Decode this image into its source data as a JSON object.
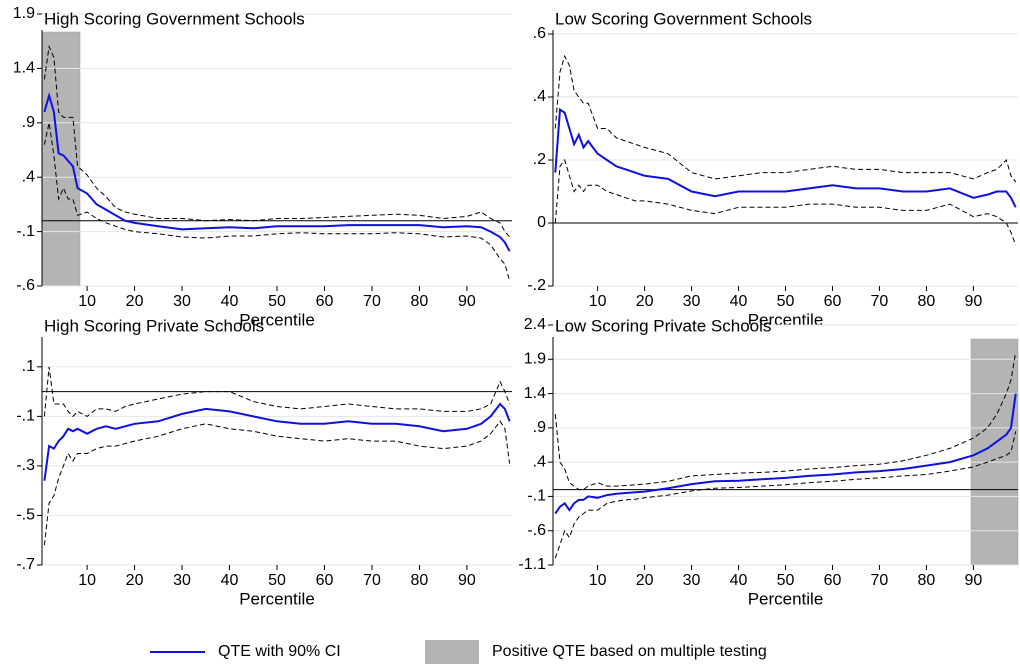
{
  "chart_data": [
    {
      "type": "line",
      "title": "High Scoring Government Schools",
      "x_label": "Percentile",
      "x": [
        1,
        2,
        3,
        4,
        5,
        6,
        7,
        8,
        10,
        12,
        14,
        16,
        18,
        20,
        25,
        30,
        35,
        40,
        45,
        50,
        55,
        60,
        65,
        70,
        75,
        80,
        85,
        90,
        93,
        95,
        97,
        98,
        99
      ],
      "qte": [
        1.0,
        1.15,
        1.0,
        0.62,
        0.6,
        0.55,
        0.5,
        0.3,
        0.25,
        0.15,
        0.1,
        0.05,
        0.0,
        -0.02,
        -0.05,
        -0.08,
        -0.07,
        -0.06,
        -0.07,
        -0.05,
        -0.05,
        -0.05,
        -0.04,
        -0.04,
        -0.04,
        -0.04,
        -0.06,
        -0.05,
        -0.06,
        -0.1,
        -0.15,
        -0.2,
        -0.28
      ],
      "ci_upper": [
        1.3,
        1.6,
        1.5,
        1.0,
        0.95,
        0.95,
        0.95,
        0.5,
        0.42,
        0.3,
        0.22,
        0.12,
        0.08,
        0.06,
        0.02,
        0.02,
        0.0,
        0.01,
        0.0,
        0.02,
        0.02,
        0.03,
        0.04,
        0.05,
        0.06,
        0.05,
        0.02,
        0.04,
        0.08,
        0.02,
        -0.02,
        -0.1,
        -0.15
      ],
      "ci_lower": [
        0.7,
        0.9,
        0.6,
        0.2,
        0.3,
        0.2,
        0.2,
        0.05,
        0.08,
        0.02,
        -0.02,
        -0.05,
        -0.08,
        -0.1,
        -0.12,
        -0.15,
        -0.16,
        -0.14,
        -0.14,
        -0.12,
        -0.11,
        -0.12,
        -0.12,
        -0.12,
        -0.11,
        -0.12,
        -0.15,
        -0.14,
        -0.16,
        -0.22,
        -0.35,
        -0.4,
        -0.55
      ],
      "shaded": [
        0.5,
        8.5
      ],
      "refline": 0,
      "xlim": [
        0.5,
        99.5
      ],
      "ylim": [
        -0.6,
        1.9
      ],
      "xticks": [
        10,
        20,
        30,
        40,
        50,
        60,
        70,
        80,
        90
      ],
      "yticks": [
        {
          "value": -0.6,
          "label": "-.6"
        },
        {
          "value": -0.1,
          "label": "-.1"
        },
        {
          "value": 0.4,
          "label": ".4"
        },
        {
          "value": 0.9,
          "label": ".9"
        },
        {
          "value": 1.4,
          "label": "1.4"
        },
        {
          "value": 1.9,
          "label": "1.9"
        }
      ],
      "grid": true
    },
    {
      "type": "line",
      "title": "Low Scoring Government Schools",
      "x_label": "Percentile",
      "x": [
        1,
        2,
        3,
        4,
        5,
        6,
        7,
        8,
        10,
        12,
        14,
        16,
        18,
        20,
        25,
        30,
        35,
        40,
        45,
        50,
        55,
        60,
        65,
        70,
        75,
        80,
        85,
        90,
        93,
        95,
        97,
        98,
        99
      ],
      "qte": [
        0.16,
        0.36,
        0.35,
        0.3,
        0.25,
        0.28,
        0.24,
        0.26,
        0.22,
        0.2,
        0.18,
        0.17,
        0.16,
        0.15,
        0.14,
        0.1,
        0.085,
        0.1,
        0.1,
        0.1,
        0.11,
        0.12,
        0.11,
        0.11,
        0.1,
        0.1,
        0.11,
        0.08,
        0.09,
        0.1,
        0.1,
        0.08,
        0.05
      ],
      "ci_upper": [
        0.3,
        0.48,
        0.53,
        0.5,
        0.42,
        0.4,
        0.38,
        0.38,
        0.3,
        0.3,
        0.27,
        0.26,
        0.25,
        0.24,
        0.22,
        0.16,
        0.14,
        0.15,
        0.16,
        0.16,
        0.17,
        0.18,
        0.17,
        0.17,
        0.16,
        0.16,
        0.16,
        0.14,
        0.16,
        0.17,
        0.2,
        0.15,
        0.13
      ],
      "ci_lower": [
        0.0,
        0.18,
        0.2,
        0.15,
        0.1,
        0.12,
        0.1,
        0.12,
        0.12,
        0.1,
        0.09,
        0.08,
        0.07,
        0.07,
        0.06,
        0.04,
        0.03,
        0.05,
        0.05,
        0.05,
        0.06,
        0.06,
        0.05,
        0.05,
        0.04,
        0.04,
        0.06,
        0.02,
        0.03,
        0.02,
        0.0,
        -0.03,
        -0.07
      ],
      "refline": 0,
      "xlim": [
        0.5,
        99.5
      ],
      "ylim": [
        -0.2,
        0.6
      ],
      "xticks": [
        10,
        20,
        30,
        40,
        50,
        60,
        70,
        80,
        90
      ],
      "yticks": [
        {
          "value": -0.2,
          "label": "-.2"
        },
        0,
        {
          "value": 0.2,
          "label": ".2"
        },
        {
          "value": 0.4,
          "label": ".4"
        },
        {
          "value": 0.6,
          "label": ".6"
        }
      ],
      "grid": true
    },
    {
      "type": "line",
      "title": "High Scoring Private Schools",
      "x_label": "Percentile",
      "x": [
        1,
        2,
        3,
        4,
        5,
        6,
        7,
        8,
        10,
        12,
        14,
        16,
        18,
        20,
        25,
        30,
        35,
        40,
        45,
        50,
        55,
        60,
        65,
        70,
        75,
        80,
        85,
        90,
        93,
        95,
        97,
        98,
        99
      ],
      "qte": [
        -0.36,
        -0.22,
        -0.23,
        -0.2,
        -0.18,
        -0.15,
        -0.16,
        -0.15,
        -0.17,
        -0.15,
        -0.14,
        -0.15,
        -0.14,
        -0.13,
        -0.12,
        -0.09,
        -0.07,
        -0.08,
        -0.1,
        -0.12,
        -0.13,
        -0.13,
        -0.12,
        -0.13,
        -0.13,
        -0.14,
        -0.16,
        -0.15,
        -0.13,
        -0.1,
        -0.05,
        -0.07,
        -0.12
      ],
      "ci_upper": [
        -0.1,
        0.1,
        -0.05,
        -0.05,
        -0.05,
        -0.08,
        -0.1,
        -0.08,
        -0.1,
        -0.07,
        -0.07,
        -0.08,
        -0.06,
        -0.05,
        -0.03,
        -0.01,
        0.0,
        0.0,
        -0.04,
        -0.06,
        -0.07,
        -0.06,
        -0.05,
        -0.06,
        -0.07,
        -0.07,
        -0.08,
        -0.08,
        -0.07,
        -0.05,
        0.04,
        0.0,
        -0.05
      ],
      "ci_lower": [
        -0.62,
        -0.45,
        -0.42,
        -0.35,
        -0.3,
        -0.25,
        -0.28,
        -0.25,
        -0.25,
        -0.23,
        -0.22,
        -0.22,
        -0.21,
        -0.2,
        -0.18,
        -0.15,
        -0.13,
        -0.15,
        -0.16,
        -0.18,
        -0.19,
        -0.2,
        -0.19,
        -0.2,
        -0.2,
        -0.22,
        -0.23,
        -0.22,
        -0.2,
        -0.17,
        -0.12,
        -0.15,
        -0.29
      ],
      "refline": 0,
      "xlim": [
        0.5,
        99.5
      ],
      "ylim": [
        -0.7,
        0.18
      ],
      "xticks": [
        10,
        20,
        30,
        40,
        50,
        60,
        70,
        80,
        90
      ],
      "yticks": [
        {
          "value": -0.7,
          "label": "-.7"
        },
        {
          "value": -0.5,
          "label": "-.5"
        },
        {
          "value": -0.3,
          "label": "-.3"
        },
        {
          "value": -0.1,
          "label": "-.1"
        },
        {
          "value": 0.1,
          "label": ".1"
        }
      ],
      "grid": true
    },
    {
      "type": "line",
      "title": "Low Scoring Private Schools",
      "x_label": "Percentile",
      "x": [
        1,
        2,
        3,
        4,
        5,
        6,
        7,
        8,
        10,
        12,
        14,
        16,
        18,
        20,
        25,
        30,
        35,
        40,
        45,
        50,
        55,
        60,
        65,
        70,
        75,
        80,
        85,
        90,
        93,
        95,
        97,
        98,
        99
      ],
      "qte": [
        -0.35,
        -0.25,
        -0.2,
        -0.3,
        -0.2,
        -0.15,
        -0.15,
        -0.1,
        -0.12,
        -0.08,
        -0.06,
        -0.05,
        -0.04,
        -0.03,
        0.02,
        0.08,
        0.12,
        0.13,
        0.15,
        0.17,
        0.2,
        0.22,
        0.25,
        0.27,
        0.3,
        0.35,
        0.4,
        0.5,
        0.6,
        0.7,
        0.8,
        0.9,
        1.4
      ],
      "ci_upper": [
        1.1,
        0.4,
        0.3,
        0.1,
        0.05,
        0.0,
        0.0,
        0.05,
        0.1,
        0.05,
        0.05,
        0.06,
        0.07,
        0.08,
        0.12,
        0.2,
        0.22,
        0.24,
        0.25,
        0.27,
        0.3,
        0.32,
        0.35,
        0.37,
        0.42,
        0.5,
        0.6,
        0.75,
        0.9,
        1.1,
        1.4,
        1.6,
        2.0
      ],
      "ci_lower": [
        -1.0,
        -0.8,
        -0.6,
        -0.7,
        -0.5,
        -0.4,
        -0.35,
        -0.3,
        -0.3,
        -0.2,
        -0.17,
        -0.15,
        -0.14,
        -0.12,
        -0.08,
        -0.02,
        0.02,
        0.03,
        0.05,
        0.07,
        0.1,
        0.12,
        0.15,
        0.17,
        0.2,
        0.22,
        0.27,
        0.33,
        0.4,
        0.45,
        0.5,
        0.55,
        0.85
      ],
      "shaded": [
        89.5,
        99.5
      ],
      "refline": 0,
      "xlim": [
        0.5,
        99.5
      ],
      "ylim": [
        -1.1,
        2.4
      ],
      "xticks": [
        10,
        20,
        30,
        40,
        50,
        60,
        70,
        80,
        90
      ],
      "yticks": [
        {
          "value": -1.1,
          "label": "-1.1"
        },
        {
          "value": -0.6,
          "label": "-.6"
        },
        {
          "value": -0.1,
          "label": "-.1"
        },
        {
          "value": 0.4,
          "label": ".4"
        },
        {
          "value": 0.9,
          "label": ".9"
        },
        {
          "value": 1.4,
          "label": "1.4"
        },
        {
          "value": 1.9,
          "label": "1.9"
        },
        {
          "value": 2.4,
          "label": "2.4"
        }
      ],
      "grid": true
    }
  ],
  "legend": {
    "line_label": "QTE with 90% CI",
    "line_color": "#1010e0",
    "shade_label": "Positive QTE based on multiple testing",
    "shade_color": "#b4b4b4"
  }
}
